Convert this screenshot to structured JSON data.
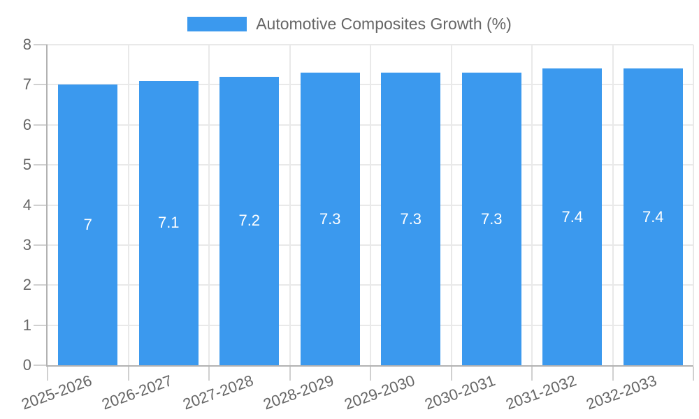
{
  "chart_data": {
    "type": "bar",
    "legend": {
      "label": "Automotive Composites Growth (%)",
      "position": "top"
    },
    "categories": [
      "2025-2026",
      "2026-2027",
      "2027-2028",
      "2028-2029",
      "2029-2030",
      "2030-2031",
      "2031-2032",
      "2032-2033"
    ],
    "series": [
      {
        "name": "Automotive Composites Growth (%)",
        "values": [
          7,
          7.1,
          7.2,
          7.3,
          7.3,
          7.3,
          7.4,
          7.4
        ]
      }
    ],
    "xlabel": "",
    "ylabel": "",
    "ylim": [
      0,
      8
    ],
    "y_ticks": [
      0,
      1,
      2,
      3,
      4,
      5,
      6,
      7,
      8
    ],
    "grid": true,
    "bar_labels_shown": true,
    "colors": {
      "bar": "#3b99ee",
      "grid_line": "#e9e9e9",
      "axis_line": "#b2b2b2",
      "tick_mark": "#d0d0d0",
      "tick_text": "#666666",
      "bar_label_text": "#ffffff",
      "legend_text": "#666666",
      "background": "#ffffff"
    }
  }
}
